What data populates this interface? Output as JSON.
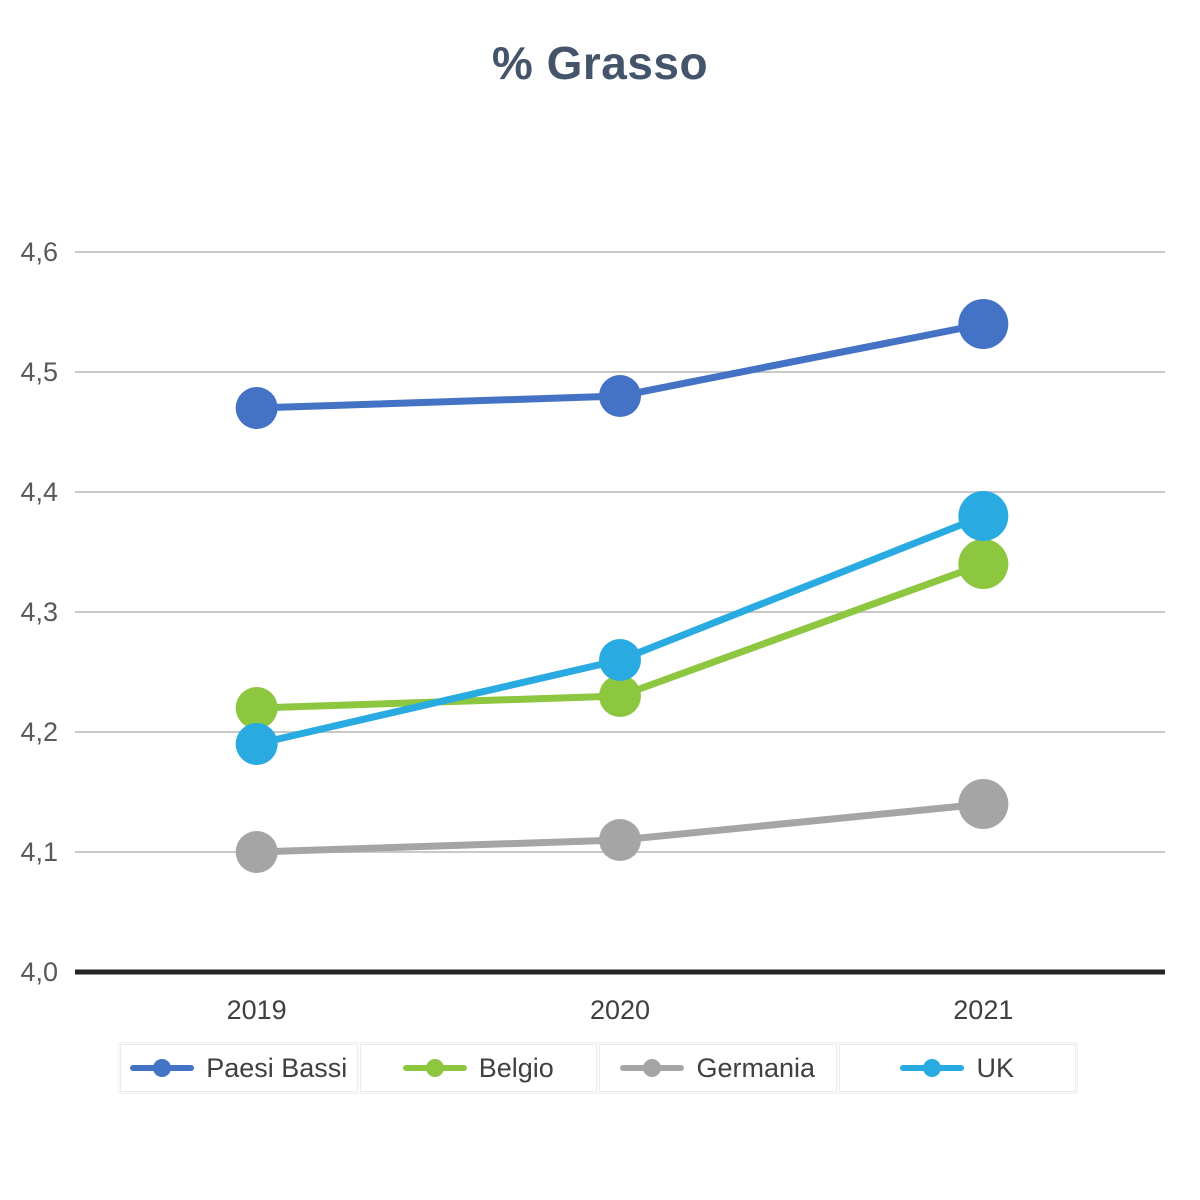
{
  "title": "% Grasso",
  "colors": {
    "title": "#44546A",
    "axis_line": "#262626",
    "gridline": "#C9C9C9",
    "y_tick_label": "#595959",
    "x_tick_label": "#404040",
    "legend_label": "#404040"
  },
  "chart_data": {
    "type": "line",
    "title": "% Grasso",
    "x": [
      "2019",
      "2020",
      "2021"
    ],
    "series": [
      {
        "name": "Paesi Bassi",
        "color": "#4472C4",
        "values": [
          4.47,
          4.48,
          4.54
        ]
      },
      {
        "name": "Belgio",
        "color": "#8DC63F",
        "values": [
          4.22,
          4.23,
          4.34
        ]
      },
      {
        "name": "Germania",
        "color": "#A5A5A5",
        "values": [
          4.1,
          4.11,
          4.14
        ]
      },
      {
        "name": "UK",
        "color": "#29ABE2",
        "values": [
          4.19,
          4.26,
          4.38
        ]
      }
    ],
    "ylim": [
      4.0,
      4.6
    ],
    "ytick_values": [
      4.0,
      4.1,
      4.2,
      4.3,
      4.4,
      4.5,
      4.6
    ],
    "ytick_labels": [
      "4,0",
      "4,1",
      "4,2",
      "4,3",
      "4,4",
      "4,5",
      "4,6"
    ],
    "xlabel": "",
    "ylabel": "",
    "grid": true,
    "legend_position": "bottom"
  }
}
